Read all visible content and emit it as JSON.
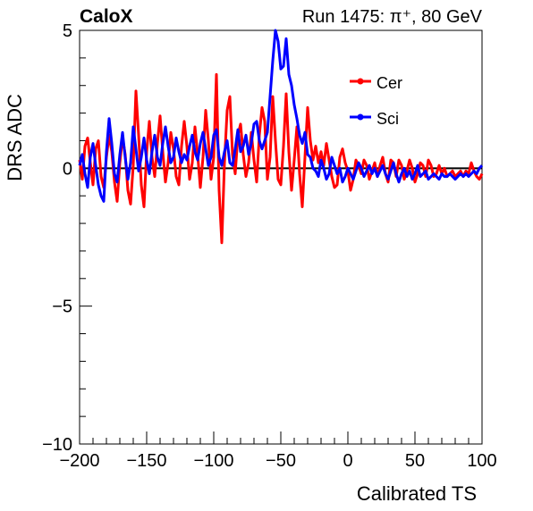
{
  "header": {
    "left_label": "CaloX",
    "right_label": "Run 1475:   π⁺, 80 GeV"
  },
  "chart_data": {
    "type": "line",
    "title": "",
    "xlabel": "Calibrated TS",
    "ylabel": "DRS ADC",
    "xlim": [
      -200,
      100
    ],
    "ylim": [
      -10,
      5
    ],
    "x_ticks": [
      -200,
      -150,
      -100,
      -50,
      0,
      50,
      100
    ],
    "x_tick_labels": [
      "−200",
      "−150",
      "−100",
      "−50",
      "0",
      "50",
      "100"
    ],
    "y_ticks": [
      -10,
      -5,
      0,
      5
    ],
    "y_tick_labels": [
      "−10",
      "−5",
      "0",
      "5"
    ],
    "grid": false,
    "legend_position": "top-right",
    "baseline": 0,
    "series": [
      {
        "name": "Cer",
        "color": "#ff0000",
        "x": [
          -200,
          -198,
          -196,
          -194,
          -192,
          -190,
          -188,
          -186,
          -184,
          -182,
          -180,
          -178,
          -176,
          -174,
          -172,
          -170,
          -168,
          -166,
          -164,
          -162,
          -160,
          -158,
          -156,
          -154,
          -152,
          -150,
          -148,
          -146,
          -144,
          -142,
          -140,
          -138,
          -136,
          -134,
          -132,
          -130,
          -128,
          -126,
          -124,
          -122,
          -120,
          -118,
          -116,
          -114,
          -112,
          -110,
          -108,
          -106,
          -104,
          -102,
          -100,
          -98,
          -96,
          -94,
          -92,
          -90,
          -88,
          -86,
          -84,
          -82,
          -80,
          -78,
          -76,
          -74,
          -72,
          -70,
          -68,
          -66,
          -64,
          -62,
          -60,
          -58,
          -56,
          -54,
          -52,
          -50,
          -48,
          -46,
          -44,
          -42,
          -40,
          -38,
          -36,
          -34,
          -32,
          -30,
          -28,
          -26,
          -24,
          -22,
          -20,
          -18,
          -16,
          -14,
          -12,
          -10,
          -8,
          -6,
          -4,
          -2,
          0,
          2,
          4,
          6,
          8,
          10,
          12,
          14,
          16,
          18,
          20,
          22,
          24,
          26,
          28,
          30,
          32,
          34,
          36,
          38,
          40,
          42,
          44,
          46,
          48,
          50,
          52,
          54,
          56,
          58,
          60,
          62,
          64,
          66,
          68,
          70,
          72,
          74,
          76,
          78,
          80,
          82,
          84,
          86,
          88,
          90,
          92,
          94,
          96,
          98,
          100
        ],
        "values": [
          0.3,
          -0.4,
          0.8,
          1.1,
          0.2,
          -0.6,
          0.7,
          1.0,
          -0.3,
          -0.7,
          0.4,
          1.2,
          0.6,
          -0.5,
          -1.2,
          0.2,
          1.1,
          0.5,
          -0.8,
          -1.3,
          0.1,
          2.8,
          1.2,
          -0.6,
          -1.4,
          0.6,
          1.7,
          0.4,
          -0.3,
          0.9,
          1.9,
          0.6,
          -0.5,
          0.2,
          1.3,
          0.7,
          -0.3,
          -0.6,
          0.8,
          1.7,
          0.8,
          -0.4,
          0.2,
          1.5,
          0.5,
          -0.7,
          0.4,
          2.1,
          1.0,
          -0.4,
          0.4,
          3.4,
          -0.8,
          -2.7,
          0.2,
          2.1,
          2.6,
          0.5,
          -0.2,
          1.2,
          1.6,
          0.5,
          -0.3,
          0.2,
          1.3,
          0.3,
          -0.5,
          1.2,
          2.2,
          1.7,
          -0.4,
          0.4,
          2.6,
          1.0,
          -0.4,
          -0.6,
          0.8,
          2.7,
          0.6,
          -0.8,
          0.3,
          1.5,
          -0.2,
          -1.4,
          0.4,
          2.2,
          1.0,
          0.3,
          0.8,
          0.2,
          0.6,
          0.1,
          0.9,
          0.3,
          -0.3,
          -0.7,
          -0.6,
          0.4,
          0.7,
          0.2,
          -0.1,
          -0.8,
          -0.4,
          0.3,
          0.1,
          -0.2,
          0.3,
          0.1,
          -0.4,
          -0.1,
          0.2,
          -0.3,
          0.1,
          0.4,
          -0.2,
          -0.5,
          0.3,
          0.2,
          -0.3,
          0.3,
          0.1,
          -0.4,
          -0.1,
          0.3,
          0.0,
          -0.5,
          -0.2,
          0.2,
          0.1,
          -0.3,
          0.3,
          0.1,
          -0.3,
          -0.2,
          0.1,
          -0.2,
          0.0,
          -0.3,
          -0.2,
          -0.1,
          -0.3,
          -0.2,
          -0.1,
          -0.3,
          -0.1,
          -0.2,
          0.2,
          -0.1,
          -0.3,
          -0.4,
          -0.2
        ]
      },
      {
        "name": "Sci",
        "color": "#0000ff",
        "x": [
          -200,
          -198,
          -196,
          -194,
          -192,
          -190,
          -188,
          -186,
          -184,
          -182,
          -180,
          -178,
          -176,
          -174,
          -172,
          -170,
          -168,
          -166,
          -164,
          -162,
          -160,
          -158,
          -156,
          -154,
          -152,
          -150,
          -148,
          -146,
          -144,
          -142,
          -140,
          -138,
          -136,
          -134,
          -132,
          -130,
          -128,
          -126,
          -124,
          -122,
          -120,
          -118,
          -116,
          -114,
          -112,
          -110,
          -108,
          -106,
          -104,
          -102,
          -100,
          -98,
          -96,
          -94,
          -92,
          -90,
          -88,
          -86,
          -84,
          -82,
          -80,
          -78,
          -76,
          -74,
          -72,
          -70,
          -68,
          -66,
          -64,
          -62,
          -60,
          -58,
          -56,
          -54,
          -52,
          -50,
          -48,
          -46,
          -44,
          -42,
          -40,
          -38,
          -36,
          -34,
          -32,
          -30,
          -28,
          -26,
          -24,
          -22,
          -20,
          -18,
          -16,
          -14,
          -12,
          -10,
          -8,
          -6,
          -4,
          -2,
          0,
          2,
          4,
          6,
          8,
          10,
          12,
          14,
          16,
          18,
          20,
          22,
          24,
          26,
          28,
          30,
          32,
          34,
          36,
          38,
          40,
          42,
          44,
          46,
          48,
          50,
          52,
          54,
          56,
          58,
          60,
          62,
          64,
          66,
          68,
          70,
          72,
          74,
          76,
          78,
          80,
          82,
          84,
          86,
          88,
          90,
          92,
          94,
          96,
          98,
          100
        ],
        "values": [
          0.1,
          0.5,
          -0.2,
          -0.7,
          0.4,
          0.9,
          0.1,
          -0.6,
          -1.0,
          -1.2,
          0.6,
          1.8,
          0.9,
          -0.2,
          -0.5,
          0.5,
          1.3,
          0.4,
          -0.4,
          0.2,
          1.5,
          0.7,
          -0.1,
          0.4,
          1.1,
          0.3,
          -0.2,
          0.6,
          1.2,
          0.4,
          0.1,
          0.9,
          1.5,
          0.8,
          0.2,
          0.4,
          1.1,
          0.6,
          0.2,
          0.5,
          0.3,
          0.8,
          1.2,
          0.6,
          0.3,
          0.9,
          1.3,
          0.7,
          0.1,
          0.4,
          1.2,
          1.4,
          0.4,
          0.1,
          0.6,
          1.0,
          0.2,
          0.1,
          0.7,
          1.4,
          0.6,
          0.8,
          1.2,
          0.5,
          0.9,
          1.6,
          1.7,
          1.0,
          0.7,
          1.0,
          1.3,
          2.6,
          3.9,
          5.0,
          4.6,
          3.6,
          3.7,
          4.7,
          3.4,
          3.0,
          2.3,
          1.8,
          1.2,
          0.9,
          1.3,
          0.5,
          0.4,
          0.0,
          -0.1,
          -0.3,
          0.3,
          0.0,
          -0.4,
          -0.2,
          0.4,
          0.1,
          -0.2,
          0.0,
          -0.5,
          -0.3,
          0.0,
          -0.2,
          -0.4,
          -0.1,
          0.2,
          0.0,
          -0.3,
          -0.1,
          0.1,
          -0.2,
          0.0,
          -0.3,
          -0.1,
          0.1,
          -0.2,
          -0.4,
          -0.1,
          0.2,
          -0.2,
          -0.5,
          -0.2,
          0.0,
          -0.3,
          -0.1,
          -0.4,
          -0.2,
          0.1,
          -0.3,
          -0.2,
          -0.1,
          -0.4,
          -0.3,
          -0.2,
          -0.3,
          -0.4,
          -0.2,
          -0.3,
          -0.3,
          -0.2,
          -0.3,
          -0.4,
          -0.3,
          -0.2,
          -0.3,
          -0.2,
          -0.3,
          -0.2,
          -0.1,
          -0.2,
          0.0,
          0.1
        ]
      }
    ]
  }
}
